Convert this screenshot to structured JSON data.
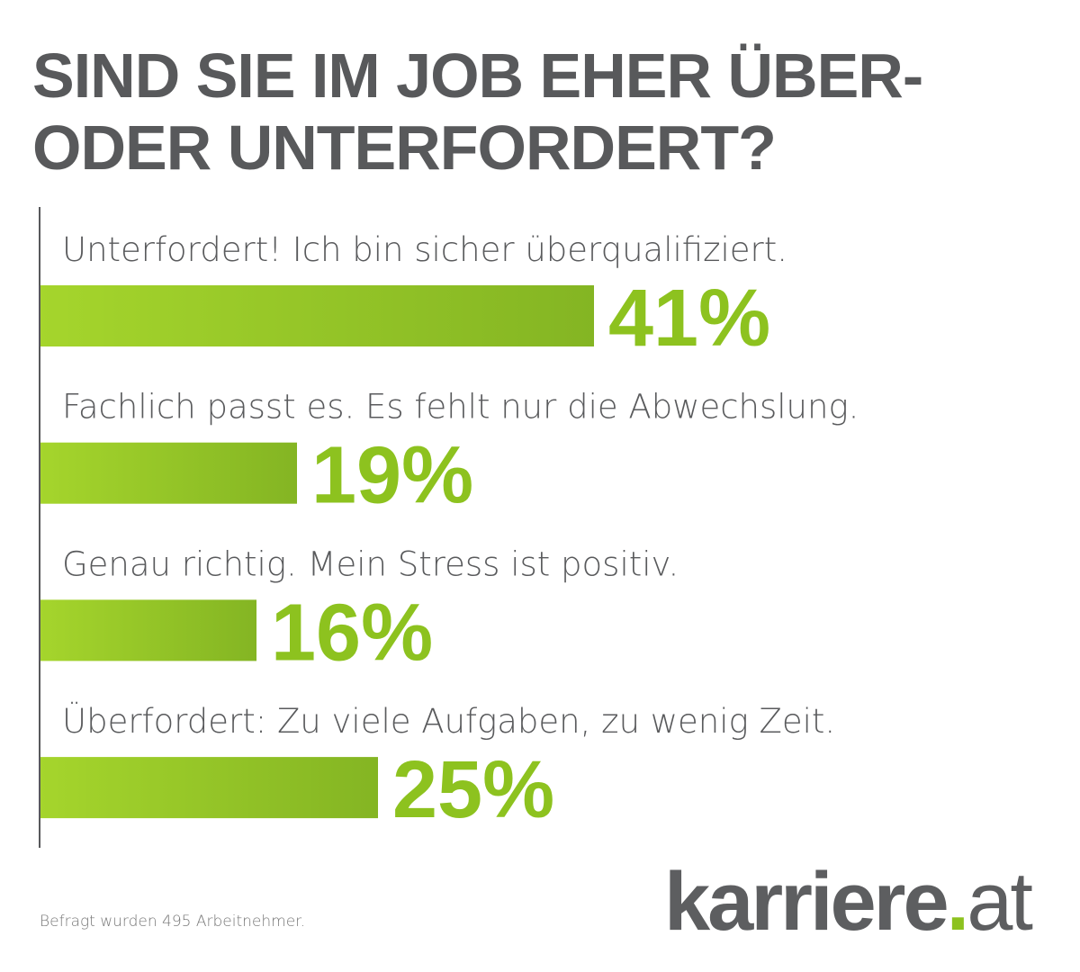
{
  "title": {
    "line1": "SIND SIE IM JOB EHER ÜBER-",
    "line2": "ODER UNTERFORDERT?"
  },
  "chart_data": {
    "type": "bar",
    "orientation": "horizontal",
    "title": "SIND SIE IM JOB EHER ÜBER- ODER UNTERFORDERT?",
    "categories": [
      "Unterfordert! Ich bin sicher überqualifiziert.",
      "Fachlich passt es. Es fehlt nur die Abwechslung.",
      "Genau richtig. Mein Stress ist positiv.",
      "Überfordert: Zu viele Aufgaben, zu wenig Zeit."
    ],
    "values": [
      41,
      19,
      16,
      25
    ],
    "value_labels": [
      "41%",
      "19%",
      "16%",
      "25%"
    ],
    "unit": "%",
    "xlabel": "",
    "ylabel": "",
    "xlim": [
      0,
      45
    ],
    "grid": false,
    "colors": {
      "bar_start": "#a5d52c",
      "bar_end": "#84b523",
      "label": "#595a5c",
      "value": "#8dc21f",
      "axis": "#58595b"
    }
  },
  "footnote": "Befragt wurden 495 Arbeitnehmer.",
  "logo": {
    "name": "karriere",
    "dot": ".",
    "tld": "at"
  }
}
